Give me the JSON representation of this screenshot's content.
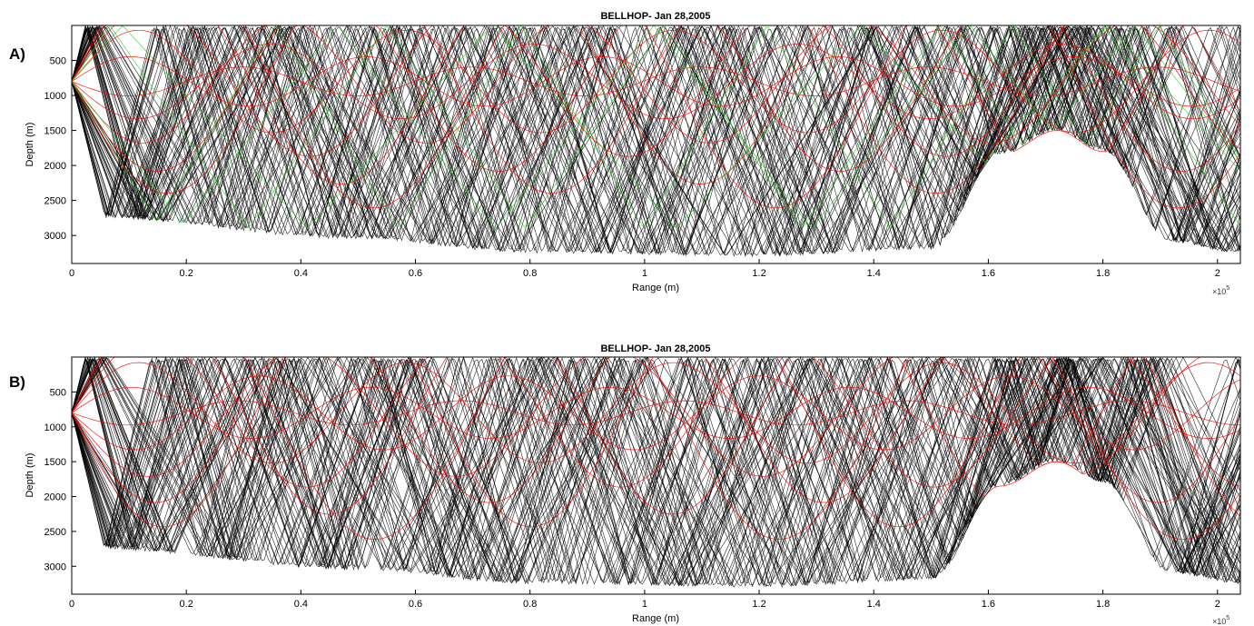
{
  "chart_data": [
    {
      "type": "line",
      "panel_label": "A)",
      "title": "BELLHOP- Jan 28,2005",
      "xlabel": "Range (m)",
      "ylabel": "Depth (m)",
      "x_multiplier": "×10",
      "x_multiplier_exp": "5",
      "xlim": [
        0,
        2.04
      ],
      "ylim": [
        3400,
        0
      ],
      "xticks": [
        "0",
        "0.2",
        "0.4",
        "0.6",
        "0.8",
        "1",
        "1.2",
        "1.4",
        "1.6",
        "1.8",
        "2"
      ],
      "yticks": [
        "500",
        "1000",
        "1500",
        "2000",
        "2500",
        "3000"
      ],
      "source_depth": 800,
      "bathymetry_range_x1e5": [
        0.03,
        0.5,
        0.8,
        1.2,
        1.5,
        1.62,
        1.72,
        1.8,
        1.92,
        2.04
      ],
      "bathymetry_depth": [
        2750,
        3050,
        3250,
        3300,
        3200,
        1850,
        1500,
        1800,
        3100,
        3250
      ],
      "colors": {
        "direct": "#000000",
        "refracted": "#ff0000",
        "surface_reflected": "#22cc22"
      }
    },
    {
      "type": "line",
      "panel_label": "B)",
      "title": "BELLHOP- Jan 28,2005",
      "xlabel": "Range (m)",
      "ylabel": "Depth (m)",
      "x_multiplier": "×10",
      "x_multiplier_exp": "5",
      "xlim": [
        0,
        2.04
      ],
      "ylim": [
        3400,
        0
      ],
      "xticks": [
        "0",
        "0.2",
        "0.4",
        "0.6",
        "0.8",
        "1",
        "1.2",
        "1.4",
        "1.6",
        "1.8",
        "2"
      ],
      "yticks": [
        "500",
        "1000",
        "1500",
        "2000",
        "2500",
        "3000"
      ],
      "source_depth": 800,
      "bathymetry_range_x1e5": [
        0.03,
        0.5,
        0.8,
        1.2,
        1.5,
        1.62,
        1.72,
        1.8,
        1.92,
        2.04
      ],
      "bathymetry_depth": [
        2750,
        3050,
        3250,
        3300,
        3200,
        1850,
        1500,
        1800,
        3100,
        3250
      ],
      "colors": {
        "direct": "#000000",
        "refracted": "#ff0000"
      }
    }
  ]
}
